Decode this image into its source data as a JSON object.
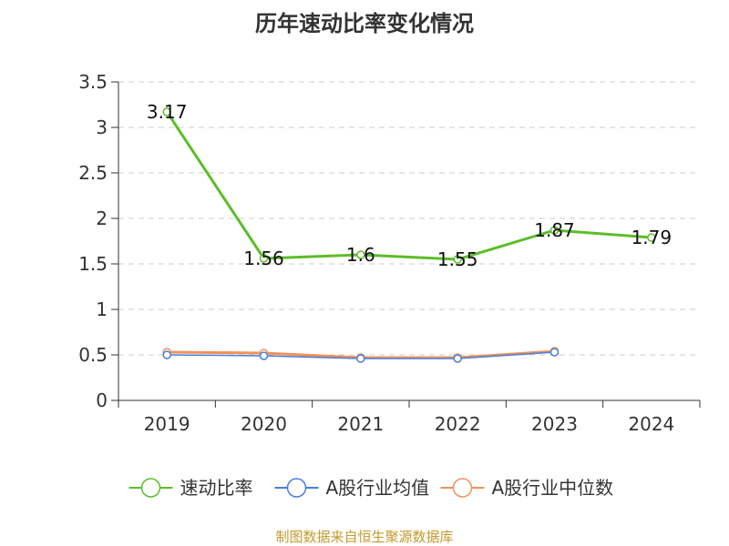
{
  "chart_data": {
    "type": "line",
    "title": "历年速动比率变化情况",
    "categories": [
      "2019",
      "2020",
      "2021",
      "2022",
      "2023",
      "2024"
    ],
    "ylim": [
      0,
      3.5
    ],
    "yticks": [
      "0",
      "0.5",
      "1",
      "1.5",
      "2",
      "2.5",
      "3",
      "3.5"
    ],
    "grid": true,
    "legend_position": "bottom",
    "series": [
      {
        "name": "速动比率",
        "color": "#5cbd29",
        "values": [
          3.17,
          1.56,
          1.6,
          1.55,
          1.87,
          1.79
        ],
        "labels": [
          "3.17",
          "1.56",
          "1.6",
          "1.55",
          "1.87",
          "1.79"
        ]
      },
      {
        "name": "A股行业均值",
        "color": "#4a7ed9",
        "values": [
          0.5,
          0.49,
          0.46,
          0.46,
          0.53,
          null
        ]
      },
      {
        "name": "A股行业中位数",
        "color": "#f0925a",
        "values": [
          0.53,
          0.52,
          0.47,
          0.47,
          0.54,
          null
        ]
      }
    ]
  },
  "source": "制图数据来自恒生聚源数据库"
}
